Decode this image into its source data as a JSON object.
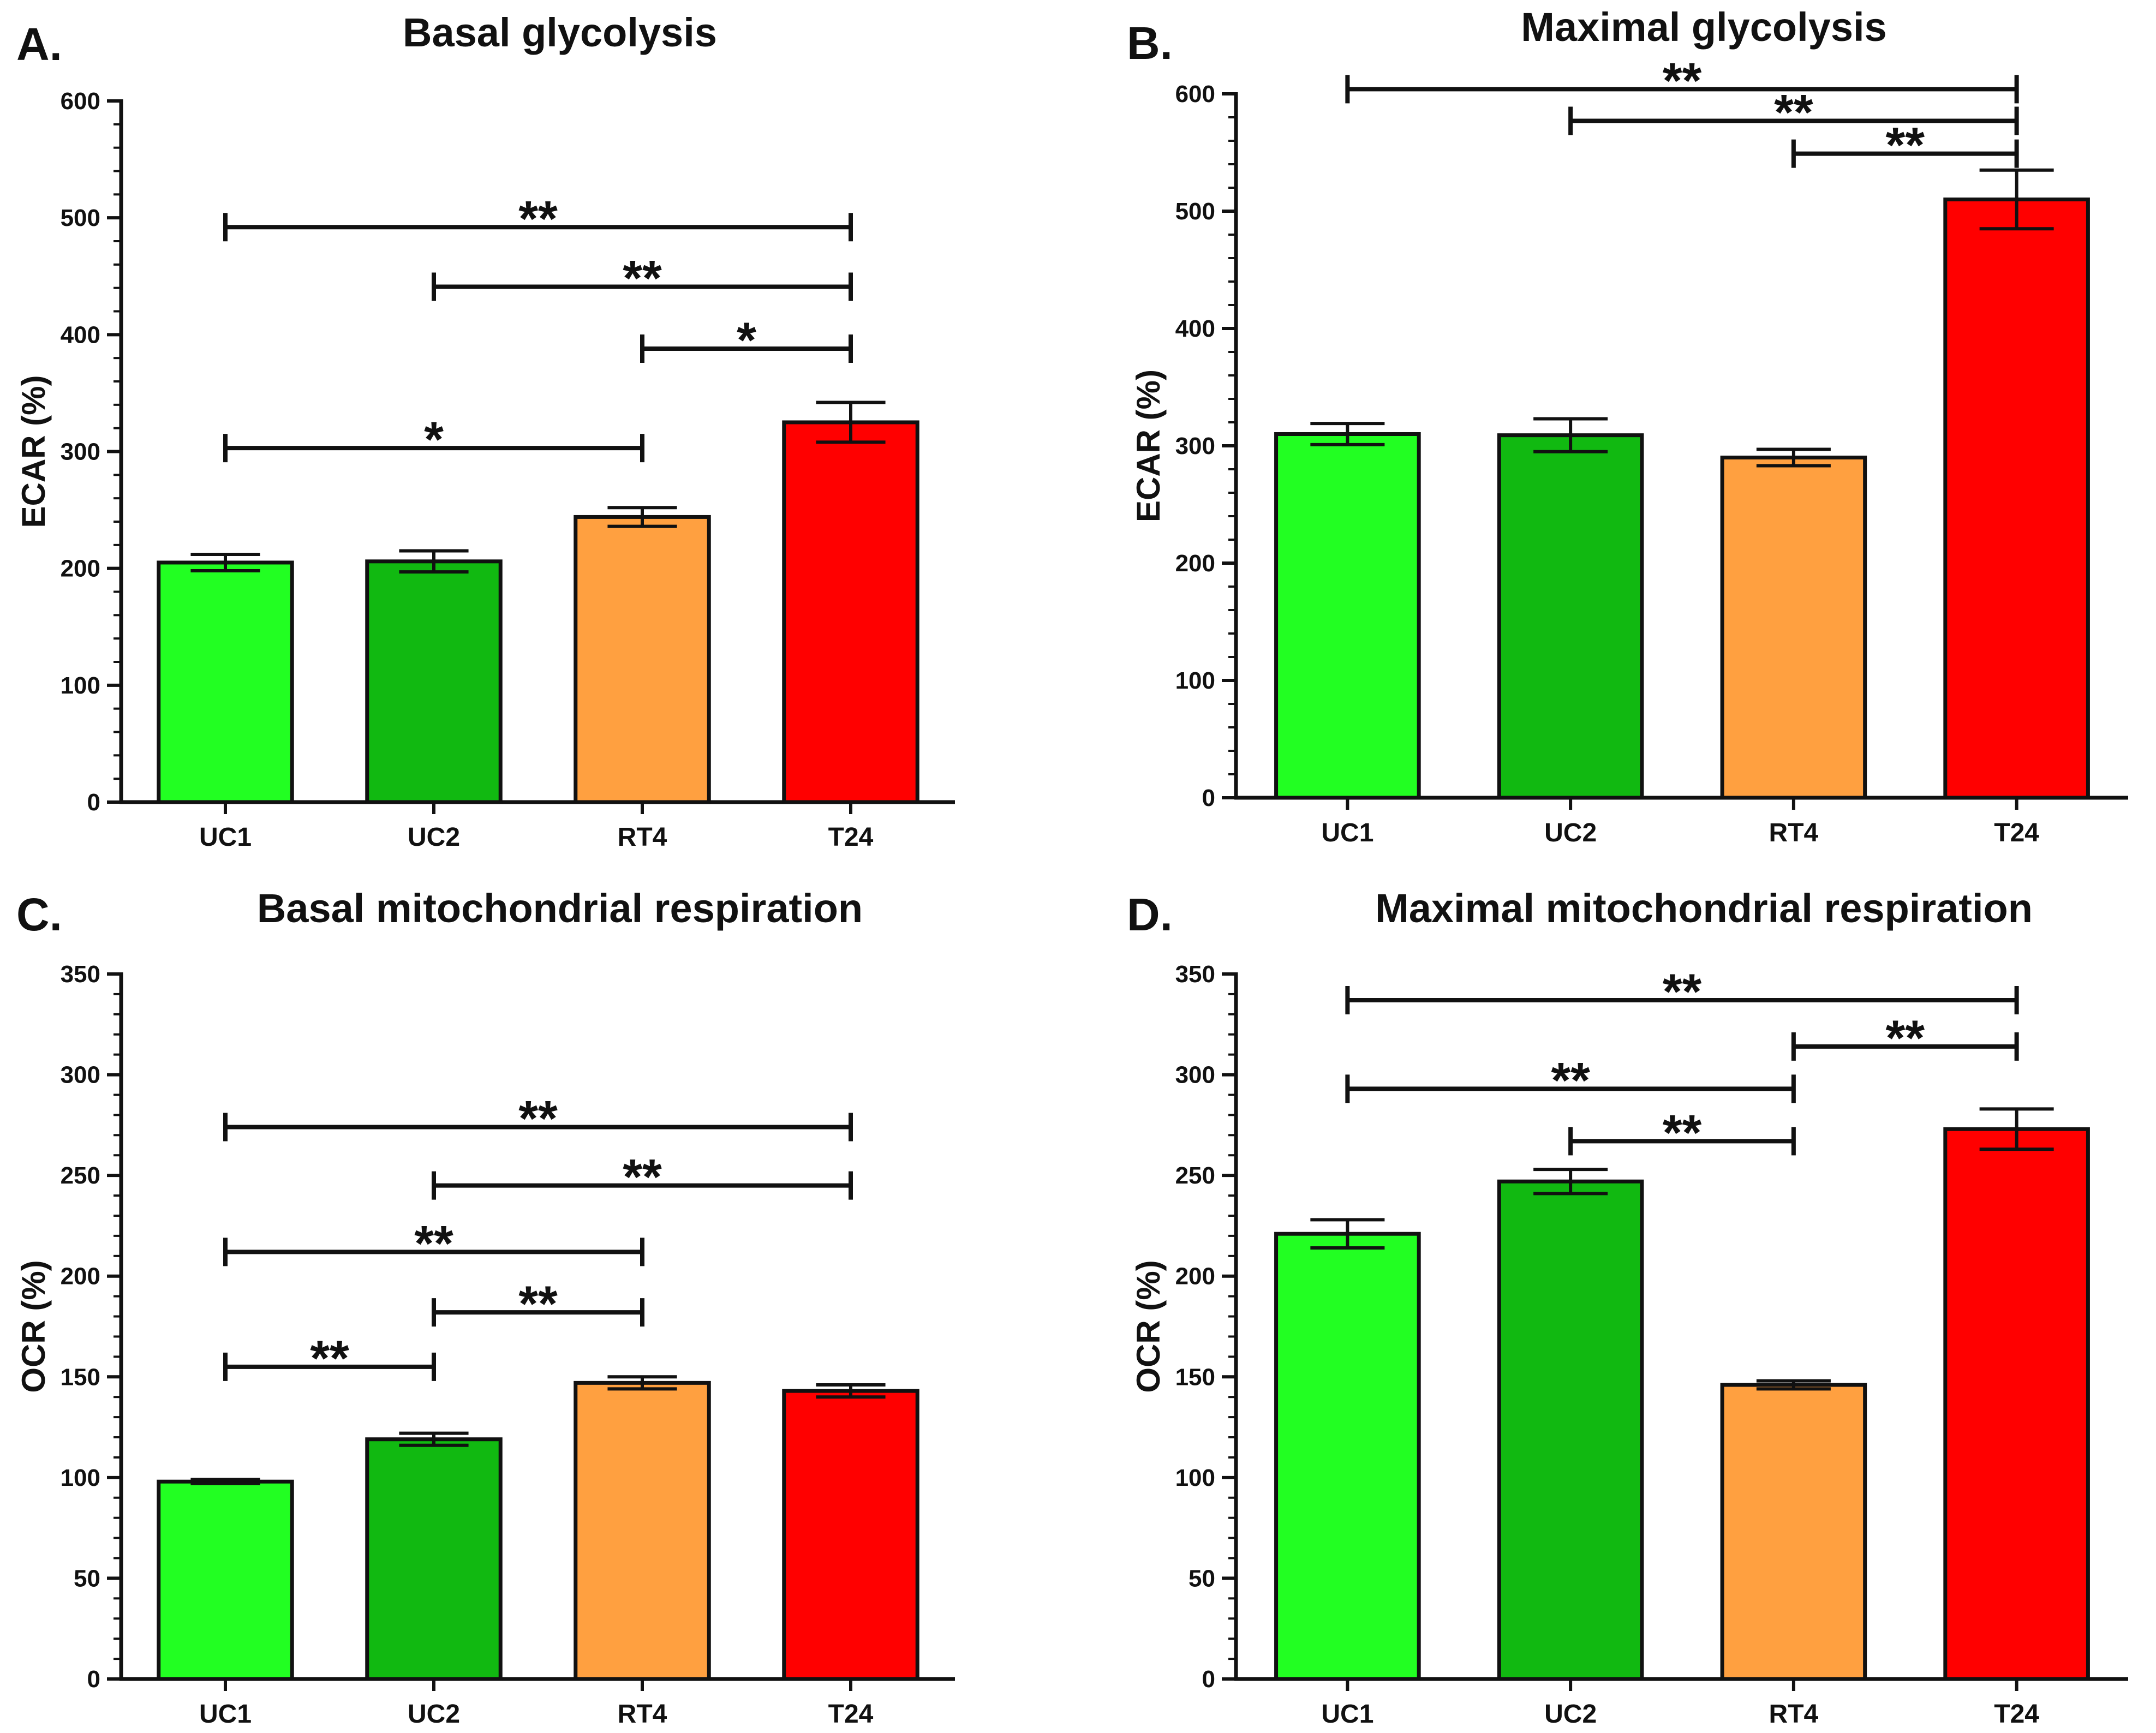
{
  "chart_data": [
    {
      "panel": "A.",
      "type": "bar",
      "title": "Basal glycolysis",
      "xlabel": "",
      "ylabel": "ECAR (%)",
      "ylim": [
        0,
        600
      ],
      "yticks": [
        0,
        100,
        200,
        300,
        400,
        500,
        600
      ],
      "categories": [
        "UC1",
        "UC2",
        "RT4",
        "T24"
      ],
      "values": [
        205,
        206,
        244,
        325
      ],
      "errors": [
        7,
        9,
        8,
        17
      ],
      "colors": [
        "#22ff22",
        "#11b911",
        "#ffa040",
        "#ff0000"
      ],
      "significance": [
        {
          "from": "UC1",
          "to": "T24",
          "label": "**",
          "level": 492
        },
        {
          "from": "UC2",
          "to": "T24",
          "label": "**",
          "level": 441
        },
        {
          "from": "RT4",
          "to": "T24",
          "label": "*",
          "level": 388
        },
        {
          "from": "UC1",
          "to": "RT4",
          "label": "*",
          "level": 303
        }
      ]
    },
    {
      "panel": "B.",
      "type": "bar",
      "title": "Maximal glycolysis",
      "xlabel": "",
      "ylabel": "ECAR (%)",
      "ylim": [
        0,
        600
      ],
      "yticks": [
        0,
        100,
        200,
        300,
        400,
        500,
        600
      ],
      "categories": [
        "UC1",
        "UC2",
        "RT4",
        "T24"
      ],
      "values": [
        310,
        309,
        290,
        510
      ],
      "errors": [
        9,
        14,
        7,
        25
      ],
      "colors": [
        "#22ff22",
        "#11b911",
        "#ffa040",
        "#ff0000"
      ],
      "significance": [
        {
          "from": "UC1",
          "to": "T24",
          "label": "**",
          "level": 604
        },
        {
          "from": "UC2",
          "to": "T24",
          "label": "**",
          "level": 577
        },
        {
          "from": "RT4",
          "to": "T24",
          "label": "**",
          "level": 549
        }
      ]
    },
    {
      "panel": "C.",
      "type": "bar",
      "title": "Basal mitochondrial respiration",
      "xlabel": "",
      "ylabel": "OCR (%)",
      "ylim": [
        0,
        350
      ],
      "yticks": [
        0,
        50,
        100,
        150,
        200,
        250,
        300,
        350
      ],
      "categories": [
        "UC1",
        "UC2",
        "RT4",
        "T24"
      ],
      "values": [
        98,
        119,
        147,
        143
      ],
      "errors": [
        1,
        3,
        3,
        3
      ],
      "colors": [
        "#22ff22",
        "#11b911",
        "#ffa040",
        "#ff0000"
      ],
      "significance": [
        {
          "from": "UC1",
          "to": "T24",
          "label": "**",
          "level": 274
        },
        {
          "from": "UC2",
          "to": "T24",
          "label": "**",
          "level": 245
        },
        {
          "from": "UC1",
          "to": "RT4",
          "label": "**",
          "level": 212
        },
        {
          "from": "UC2",
          "to": "RT4",
          "label": "**",
          "level": 182
        },
        {
          "from": "UC1",
          "to": "UC2",
          "label": "**",
          "level": 155
        }
      ]
    },
    {
      "panel": "D.",
      "type": "bar",
      "title": "Maximal mitochondrial respiration",
      "xlabel": "",
      "ylabel": "OCR (%)",
      "ylim": [
        0,
        350
      ],
      "yticks": [
        0,
        50,
        100,
        150,
        200,
        250,
        300,
        350
      ],
      "categories": [
        "UC1",
        "UC2",
        "RT4",
        "T24"
      ],
      "values": [
        221,
        247,
        146,
        273
      ],
      "errors": [
        7,
        6,
        2,
        10
      ],
      "colors": [
        "#22ff22",
        "#11b911",
        "#ffa040",
        "#ff0000"
      ],
      "significance": [
        {
          "from": "UC1",
          "to": "T24",
          "label": "**",
          "level": 337
        },
        {
          "from": "RT4",
          "to": "T24",
          "label": "**",
          "level": 314
        },
        {
          "from": "UC1",
          "to": "RT4",
          "label": "**",
          "level": 293
        },
        {
          "from": "UC2",
          "to": "RT4",
          "label": "**",
          "level": 267
        }
      ]
    }
  ]
}
